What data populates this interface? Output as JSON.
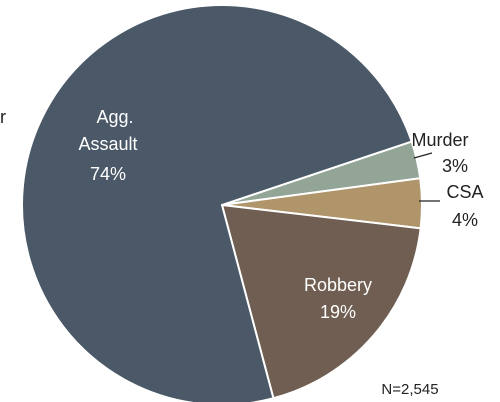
{
  "chart_data": {
    "type": "pie",
    "categories": [
      "Murder",
      "CSA",
      "Robbery",
      "Agg. Assault"
    ],
    "values": [
      3,
      4,
      19,
      74
    ],
    "value_labels": [
      "3%",
      "4%",
      "19%",
      "74%"
    ],
    "colors": [
      "#93a597",
      "#b0946a",
      "#6f5e51",
      "#4a5867"
    ],
    "annotations": [
      "r",
      "N=2,545"
    ]
  }
}
